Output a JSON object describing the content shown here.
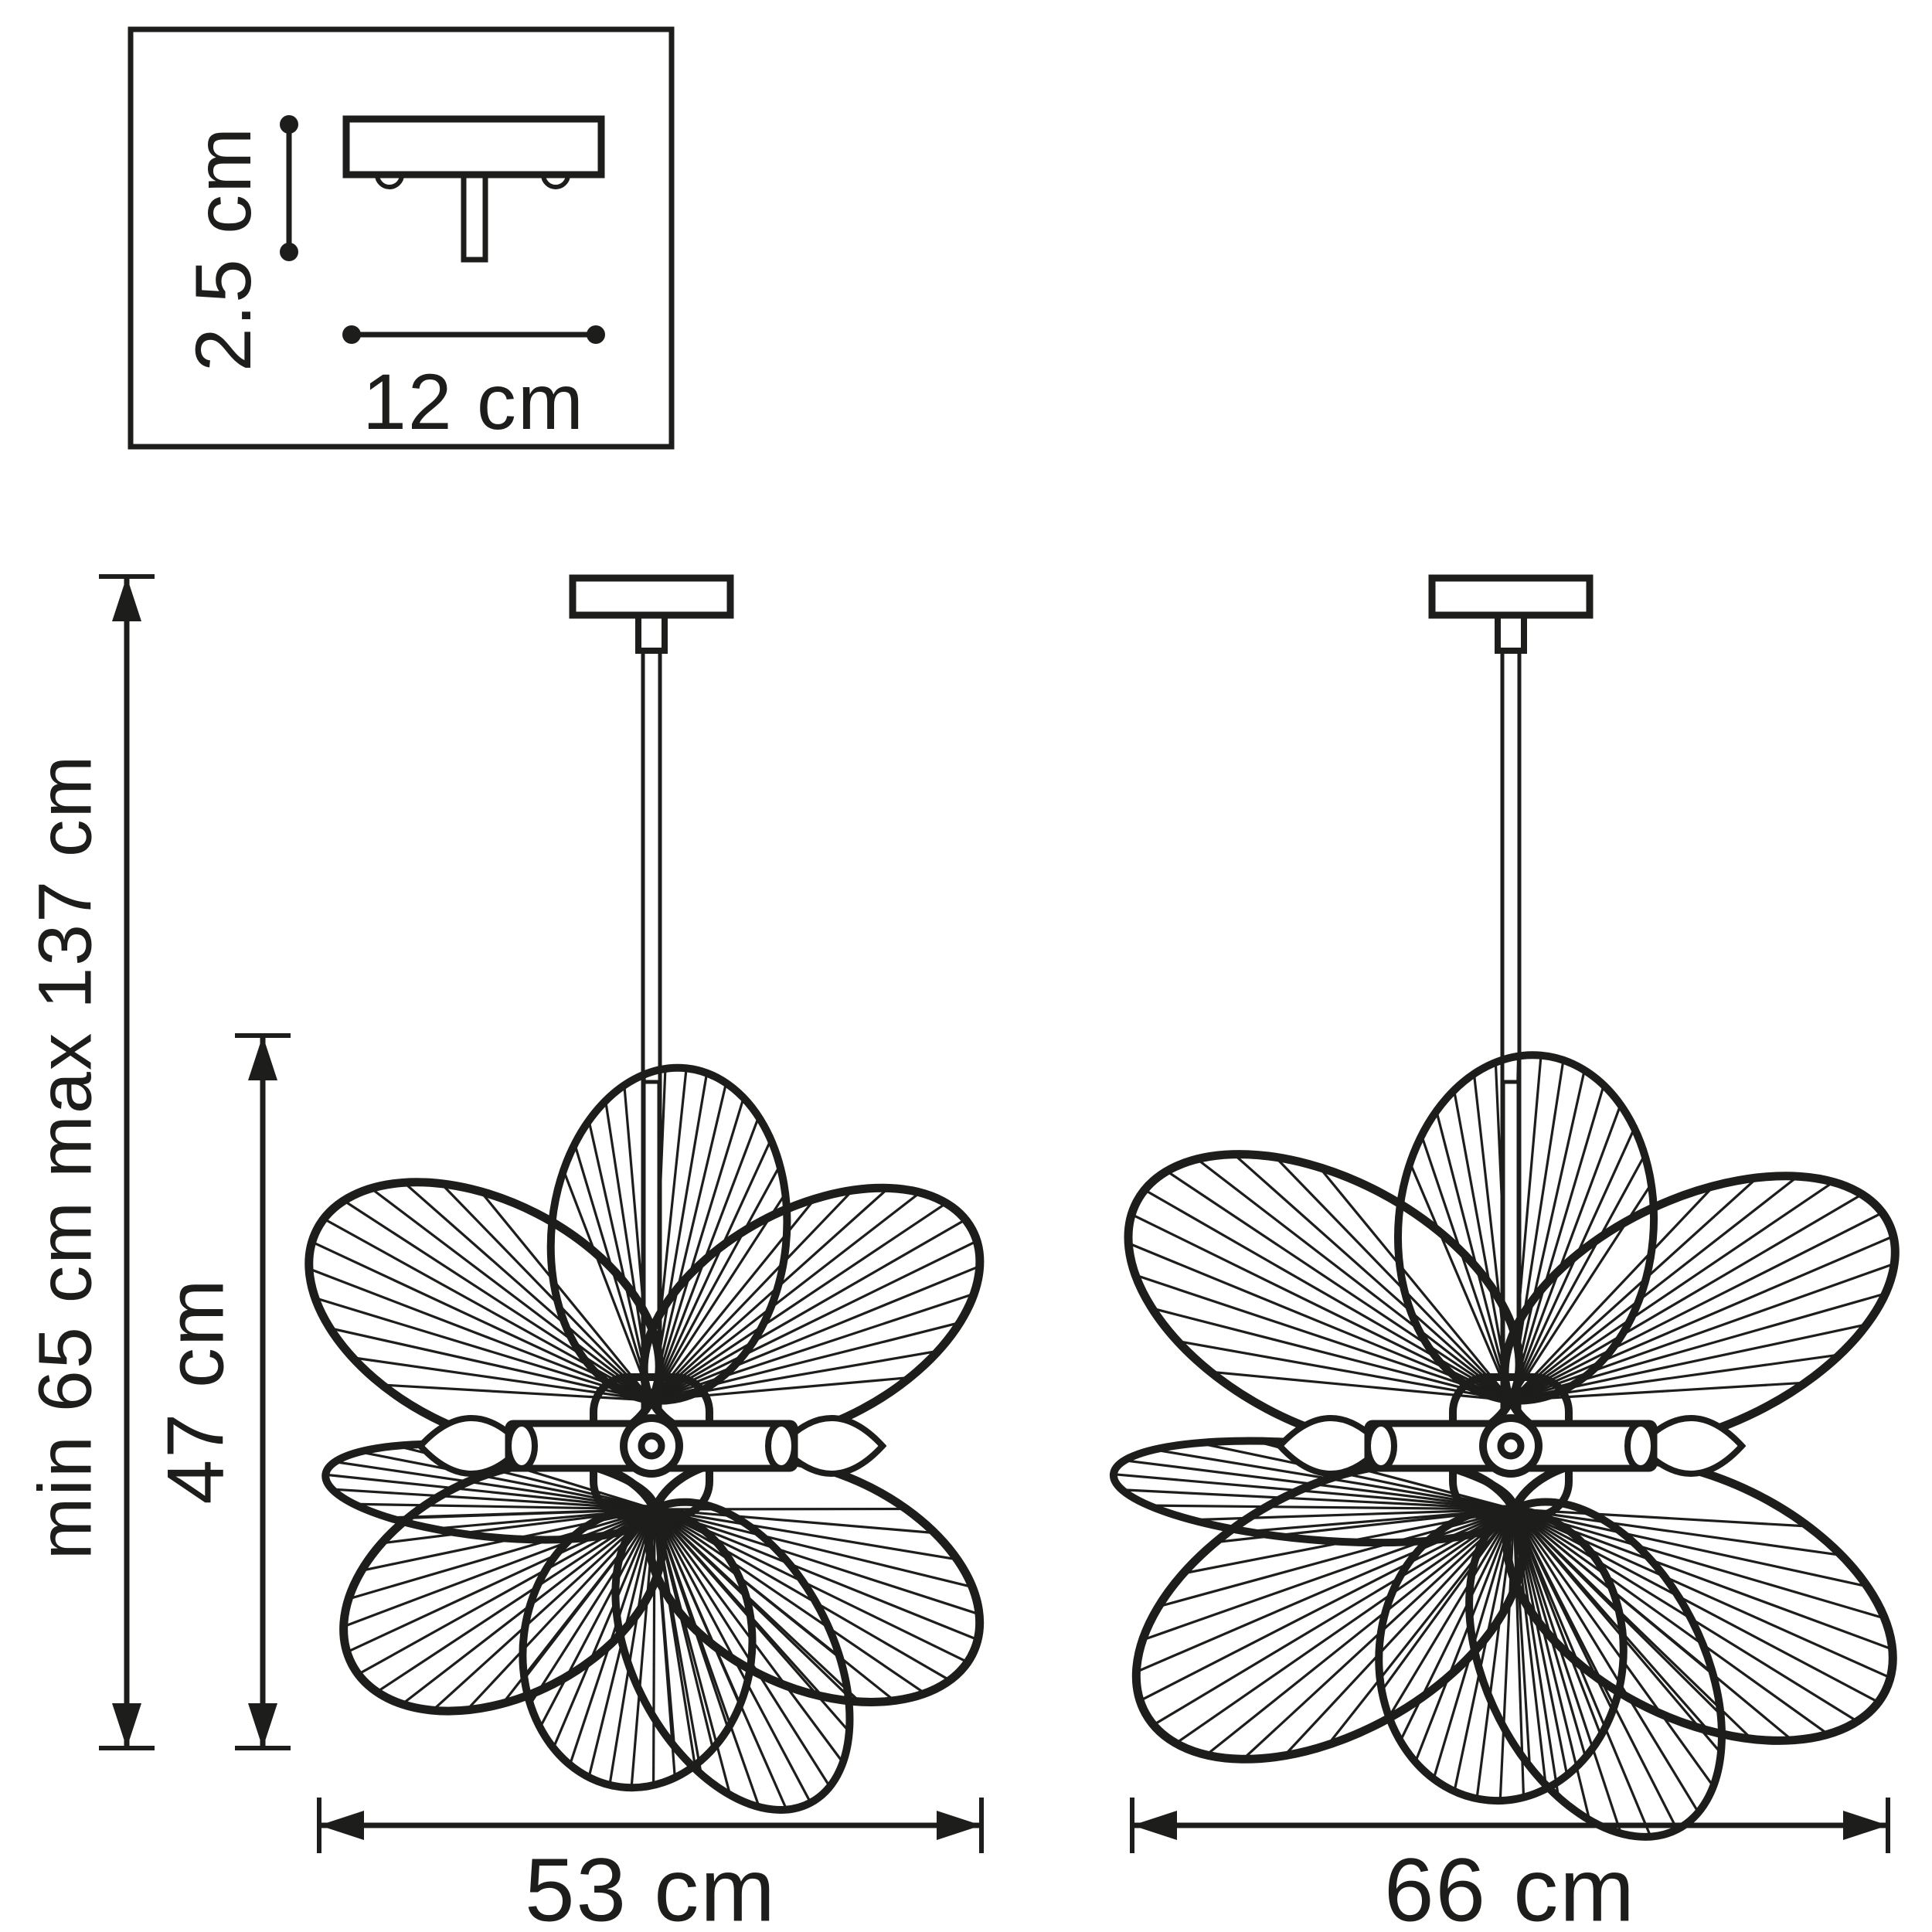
{
  "diagram": {
    "kind": "pendant-chandelier-dimension-drawing",
    "canopy_inset": {
      "height_label": "2.5 cm",
      "width_label": "12 cm"
    },
    "left_fixture": {
      "height_range_label": "min 65 cm max 137 cm",
      "shade_height_label": "47 cm",
      "width_label": "53 cm"
    },
    "right_fixture": {
      "width_label": "66 cm"
    },
    "colors": {
      "line": "#1d1d1b",
      "background": "#ffffff"
    }
  }
}
